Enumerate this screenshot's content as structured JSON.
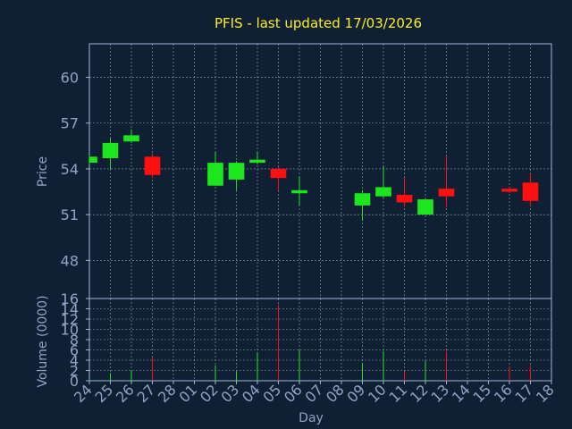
{
  "colors": {
    "background": "#0f2035",
    "frame": "#9fb4d6",
    "grid": "#cfd8e6",
    "title": "#ffee22",
    "axis_text": "#8fa3c4",
    "up": "#1ee61e",
    "down": "#ff0f0f"
  },
  "chart_data": [
    {
      "type": "candlestick",
      "title": "PFIS - last updated 17/03/2026",
      "ylabel": "Price",
      "ylim": [
        45.5,
        62.2
      ],
      "yticks": [
        48,
        51,
        54,
        57,
        60
      ],
      "grid": true,
      "x_labels": [
        "24",
        "25",
        "26",
        "27",
        "28",
        "01",
        "02",
        "03",
        "04",
        "05",
        "06",
        "07",
        "08",
        "09",
        "10",
        "11",
        "12",
        "13",
        "14",
        "15",
        "16",
        "17",
        "18"
      ],
      "candles": [
        {
          "day": "24",
          "open": 54.4,
          "close": 54.8,
          "high": 54.9,
          "low": 54.3,
          "direction": "up"
        },
        {
          "day": "25",
          "open": 54.7,
          "close": 55.7,
          "high": 56.0,
          "low": 54.0,
          "direction": "up"
        },
        {
          "day": "26",
          "open": 55.8,
          "close": 56.2,
          "high": 56.6,
          "low": 55.7,
          "direction": "up"
        },
        {
          "day": "27",
          "open": 54.8,
          "close": 53.6,
          "high": 55.0,
          "low": 53.4,
          "direction": "down"
        },
        {
          "day": "02",
          "open": 52.9,
          "close": 54.4,
          "high": 55.1,
          "low": 52.9,
          "direction": "up"
        },
        {
          "day": "03",
          "open": 53.3,
          "close": 54.4,
          "high": 54.5,
          "low": 52.6,
          "direction": "up"
        },
        {
          "day": "04",
          "open": 54.4,
          "close": 54.6,
          "high": 55.1,
          "low": 54.3,
          "direction": "up"
        },
        {
          "day": "05",
          "open": 54.0,
          "close": 53.4,
          "high": 54.1,
          "low": 52.6,
          "direction": "down"
        },
        {
          "day": "06",
          "open": 52.4,
          "close": 52.6,
          "high": 53.5,
          "low": 51.6,
          "direction": "up"
        },
        {
          "day": "09",
          "open": 51.6,
          "close": 52.4,
          "high": 52.6,
          "low": 50.6,
          "direction": "up"
        },
        {
          "day": "10",
          "open": 52.2,
          "close": 52.8,
          "high": 54.2,
          "low": 52.1,
          "direction": "up"
        },
        {
          "day": "11",
          "open": 52.3,
          "close": 51.8,
          "high": 53.4,
          "low": 51.5,
          "direction": "down"
        },
        {
          "day": "12",
          "open": 51.0,
          "close": 52.0,
          "high": 52.0,
          "low": 51.0,
          "direction": "up"
        },
        {
          "day": "13",
          "open": 52.7,
          "close": 52.2,
          "high": 54.8,
          "low": 51.5,
          "direction": "down"
        },
        {
          "day": "16",
          "open": 52.7,
          "close": 52.5,
          "high": 52.8,
          "low": 52.4,
          "direction": "down"
        },
        {
          "day": "17",
          "open": 53.1,
          "close": 51.9,
          "high": 53.7,
          "low": 51.6,
          "direction": "down"
        }
      ]
    },
    {
      "type": "bar",
      "ylabel": "Volume (0000)",
      "xlabel": "Day",
      "ylim": [
        0,
        16
      ],
      "yticks": [
        0,
        2,
        4,
        6,
        8,
        10,
        12,
        14,
        16
      ],
      "grid": true,
      "x_labels": [
        "24",
        "25",
        "26",
        "27",
        "28",
        "01",
        "02",
        "03",
        "04",
        "05",
        "06",
        "07",
        "08",
        "09",
        "10",
        "11",
        "12",
        "13",
        "14",
        "15",
        "16",
        "17",
        "18"
      ],
      "bars": [
        {
          "day": "24",
          "value": 0.2,
          "direction": "up"
        },
        {
          "day": "25",
          "value": 1.5,
          "direction": "up"
        },
        {
          "day": "26",
          "value": 2.0,
          "direction": "up"
        },
        {
          "day": "27",
          "value": 4.5,
          "direction": "down"
        },
        {
          "day": "02",
          "value": 3.0,
          "direction": "up"
        },
        {
          "day": "03",
          "value": 1.8,
          "direction": "up"
        },
        {
          "day": "04",
          "value": 5.5,
          "direction": "up"
        },
        {
          "day": "05",
          "value": 14.8,
          "direction": "down"
        },
        {
          "day": "06",
          "value": 6.0,
          "direction": "up"
        },
        {
          "day": "09",
          "value": 3.5,
          "direction": "up"
        },
        {
          "day": "10",
          "value": 5.8,
          "direction": "up"
        },
        {
          "day": "11",
          "value": 1.8,
          "direction": "down"
        },
        {
          "day": "12",
          "value": 3.8,
          "direction": "up"
        },
        {
          "day": "13",
          "value": 5.8,
          "direction": "down"
        },
        {
          "day": "16",
          "value": 2.8,
          "direction": "down"
        },
        {
          "day": "17",
          "value": 3.0,
          "direction": "down"
        }
      ]
    }
  ]
}
